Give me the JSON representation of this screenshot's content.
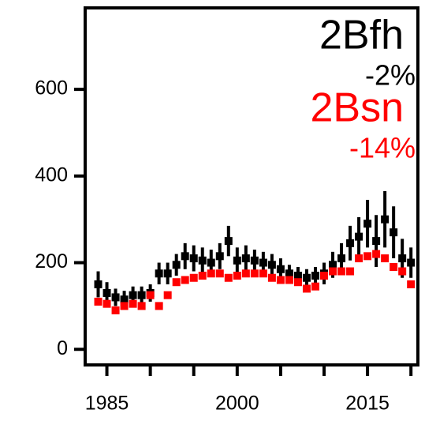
{
  "chart_data": {
    "type": "errorbar-scatter",
    "x": [
      1984,
      1985,
      1986,
      1987,
      1988,
      1989,
      1990,
      1991,
      1992,
      1993,
      1994,
      1995,
      1996,
      1997,
      1998,
      1999,
      2000,
      2001,
      2002,
      2003,
      2004,
      2005,
      2006,
      2007,
      2008,
      2009,
      2010,
      2011,
      2012,
      2013,
      2014,
      2015,
      2016,
      2017,
      2018,
      2019,
      2020
    ],
    "series": [
      {
        "name": "2Bfh",
        "change": "-2%",
        "color": "#000000",
        "values": [
          150,
          130,
          120,
          115,
          125,
          125,
          130,
          175,
          175,
          195,
          215,
          210,
          205,
          200,
          215,
          250,
          205,
          210,
          205,
          200,
          195,
          185,
          175,
          170,
          165,
          170,
          175,
          195,
          210,
          245,
          260,
          290,
          250,
          300,
          270,
          210,
          200
        ],
        "errors": [
          30,
          25,
          20,
          20,
          20,
          20,
          20,
          25,
          25,
          25,
          30,
          30,
          30,
          30,
          30,
          35,
          30,
          30,
          25,
          25,
          25,
          25,
          20,
          20,
          20,
          20,
          25,
          30,
          35,
          40,
          45,
          55,
          60,
          65,
          60,
          45,
          35
        ]
      },
      {
        "name": "2Bsn",
        "change": "-14%",
        "color": "#ff0000",
        "values": [
          110,
          105,
          90,
          100,
          105,
          100,
          125,
          100,
          125,
          155,
          160,
          165,
          170,
          175,
          175,
          165,
          170,
          175,
          175,
          175,
          165,
          160,
          160,
          155,
          140,
          145,
          170,
          180,
          180,
          180,
          210,
          215,
          220,
          210,
          190,
          180,
          150
        ]
      }
    ],
    "xlim": [
      1982.5,
      2020.8
    ],
    "xticks": [
      1985,
      2000,
      2015
    ],
    "xminor_ticks": [
      1990,
      1995,
      2005,
      2010,
      2020
    ],
    "ylim": [
      -36,
      788
    ],
    "yticks": [
      0,
      200,
      400,
      600
    ]
  }
}
